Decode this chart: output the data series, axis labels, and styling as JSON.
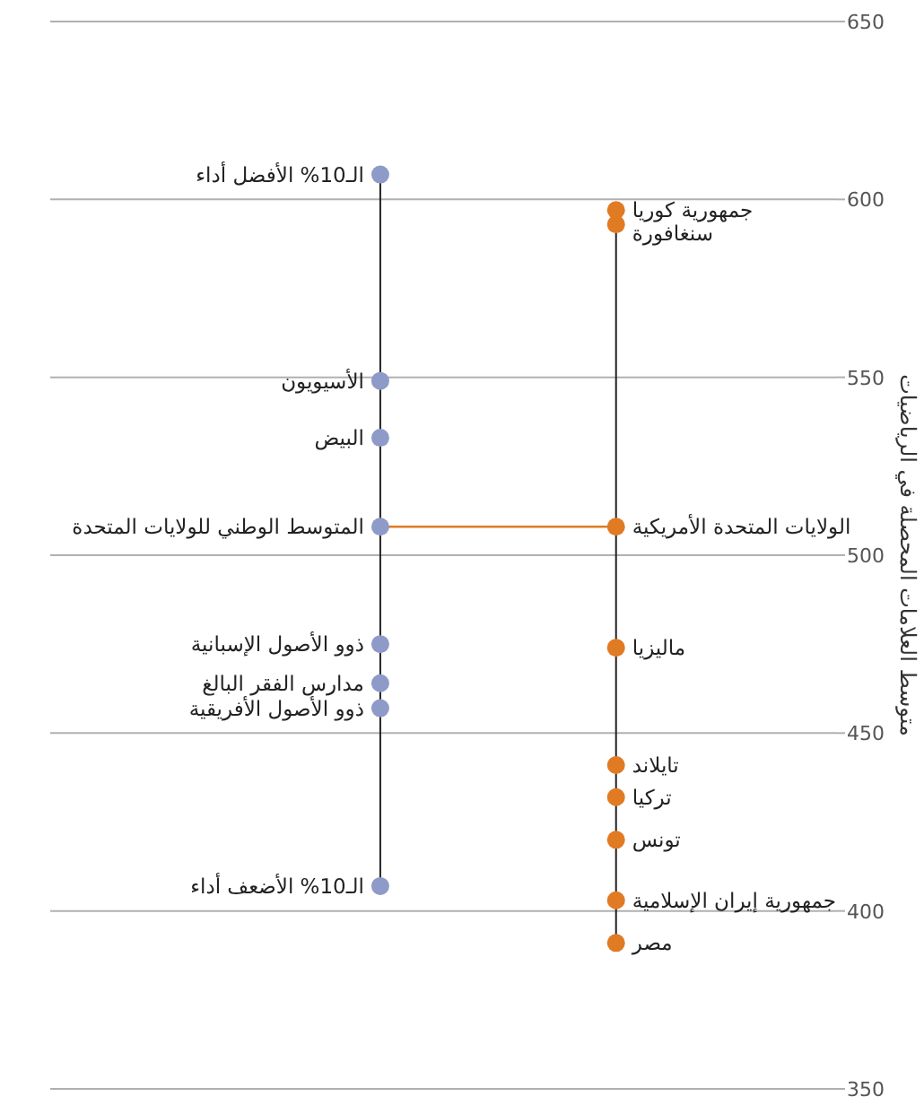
{
  "chart_data": {
    "type": "scatter",
    "ylabel": "متوسط العلامات المحصلة في الرياضيات",
    "categories": [
      null,
      null
    ],
    "ylim": [
      350,
      650
    ],
    "yticks": [
      350,
      400,
      450,
      500,
      550,
      600,
      650
    ],
    "grid": "y",
    "marker": "circle",
    "tick_labels": "y",
    "series": [
      {
        "name": "الـ10% الأفضل أداء",
        "color": "#8e9ac8",
        "values": [
          607,
          null
        ]
      },
      {
        "name": "الأسيويون",
        "color": "#8e9ac8",
        "values": [
          549,
          null
        ]
      },
      {
        "name": "البيض",
        "color": "#8e9ac8",
        "values": [
          533,
          null
        ]
      },
      {
        "name": "المتوسط الوطني للولايات المتحدة",
        "color": "#8e9ac8",
        "values": [
          508,
          null
        ]
      },
      {
        "name": "ذوو الأصول الإسبانية",
        "color": "#8e9ac8",
        "values": [
          475,
          null
        ]
      },
      {
        "name": "مدارس الفقر البالغ",
        "color": "#8e9ac8",
        "values": [
          464,
          null
        ]
      },
      {
        "name": "ذوو الأصول الأفريقية",
        "color": "#8e9ac8",
        "values": [
          457,
          null
        ]
      },
      {
        "name": "الـ10% الأضعف أداء",
        "color": "#8e9ac8",
        "values": [
          407,
          null
        ]
      },
      {
        "name": "جمهورية كوريا",
        "color": "#e07b24",
        "values": [
          null,
          597
        ]
      },
      {
        "name": "سنغافورة",
        "color": "#e07b24",
        "values": [
          null,
          593
        ]
      },
      {
        "name": "الولايات المتحدة الأمريكية",
        "color": "#e07b24",
        "values": [
          null,
          508
        ]
      },
      {
        "name": "ماليزيا",
        "color": "#e07b24",
        "values": [
          null,
          474
        ]
      },
      {
        "name": "تايلاند",
        "color": "#e07b24",
        "values": [
          null,
          441
        ]
      },
      {
        "name": "تركيا",
        "color": "#e07b24",
        "values": [
          null,
          432
        ]
      },
      {
        "name": "تونس",
        "color": "#e07b24",
        "values": [
          null,
          420
        ]
      },
      {
        "name": "جمهورية إيران الإسلامية",
        "color": "#e07b24",
        "values": [
          null,
          403
        ]
      },
      {
        "name": "مصر",
        "color": "#e07b24",
        "values": [
          null,
          391
        ]
      }
    ],
    "ref_lines": [
      {
        "axis": "y",
        "value": 508,
        "color": "#e07b24"
      }
    ]
  }
}
